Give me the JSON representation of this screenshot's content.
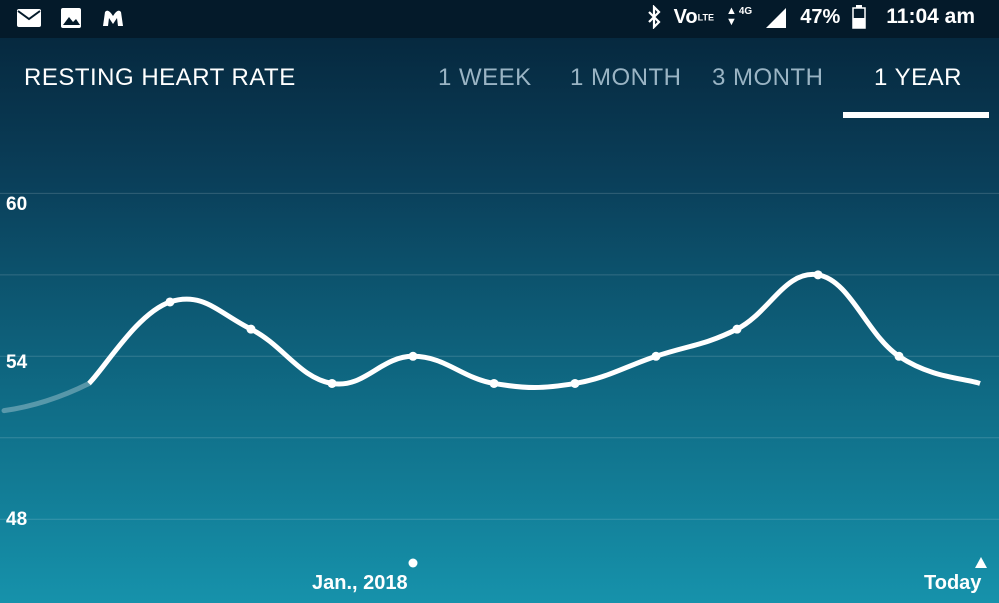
{
  "status_bar": {
    "battery_text": "47%",
    "time": "11:04 am",
    "icons": [
      "mail-icon",
      "gallery-icon",
      "malwarebytes-icon",
      "bluetooth-icon",
      "volte-icon",
      "network-4g-icon",
      "signal-icon",
      "battery-icon"
    ],
    "network_label": "4G",
    "volte_label": "Vo",
    "lte_label": "LTE"
  },
  "header": {
    "title": "RESTING HEART RATE",
    "tabs": [
      {
        "label": "1 WEEK"
      },
      {
        "label": "1 MONTH"
      },
      {
        "label": "3 MONTH"
      },
      {
        "label": "1 YEAR",
        "active": true
      }
    ]
  },
  "chart_data": {
    "type": "line",
    "title": "",
    "xlabel": "",
    "ylabel": "",
    "y_ticks": [
      60,
      54,
      48
    ],
    "ylim": [
      46.5,
      62.7
    ],
    "x_labels": [
      "Jan., 2018",
      "Today"
    ],
    "x": [
      0,
      1,
      2,
      3,
      4,
      5,
      6,
      7,
      8,
      9,
      10,
      11
    ],
    "series": [
      {
        "values": [
          53.0,
          56.0,
          55.0,
          53.0,
          54.0,
          53.0,
          53.0,
          54.0,
          55.0,
          57.0,
          54.0,
          53.0
        ]
      }
    ],
    "leading_faded_value": 52.0,
    "grid": true,
    "line_color": "#ffffff"
  }
}
